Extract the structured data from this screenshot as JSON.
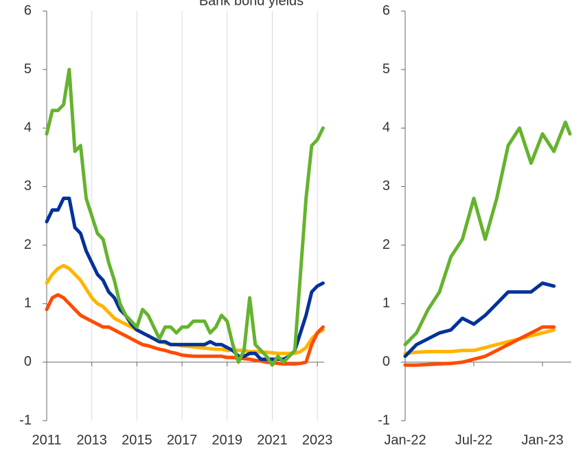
{
  "chart_data": [
    {
      "type": "line",
      "title": "Bank bond yields",
      "x": [
        2011,
        2011.25,
        2011.5,
        2011.75,
        2012,
        2012.25,
        2012.5,
        2012.75,
        2013,
        2013.25,
        2013.5,
        2013.75,
        2014,
        2014.25,
        2014.5,
        2014.75,
        2015,
        2015.25,
        2015.5,
        2015.75,
        2016,
        2016.25,
        2016.5,
        2016.75,
        2017,
        2017.25,
        2017.5,
        2017.75,
        2018,
        2018.25,
        2018.5,
        2018.75,
        2019,
        2019.25,
        2019.5,
        2019.75,
        2020,
        2020.25,
        2020.5,
        2020.75,
        2021,
        2021.25,
        2021.5,
        2021.75,
        2022,
        2022.25,
        2022.5,
        2022.75,
        2023,
        2023.25
      ],
      "series": [
        {
          "color": "#ffb400",
          "values": [
            1.35,
            1.5,
            1.6,
            1.65,
            1.6,
            1.5,
            1.4,
            1.25,
            1.1,
            1.0,
            0.95,
            0.85,
            0.75,
            0.7,
            0.65,
            0.6,
            0.55,
            0.5,
            0.45,
            0.4,
            0.35,
            0.33,
            0.3,
            0.3,
            0.28,
            0.27,
            0.26,
            0.25,
            0.24,
            0.23,
            0.22,
            0.22,
            0.2,
            0.2,
            0.2,
            0.2,
            0.18,
            0.18,
            0.17,
            0.17,
            0.16,
            0.15,
            0.15,
            0.15,
            0.15,
            0.18,
            0.25,
            0.4,
            0.5,
            0.55
          ]
        },
        {
          "color": "#ff4b00",
          "values": [
            0.9,
            1.1,
            1.15,
            1.1,
            1.0,
            0.9,
            0.8,
            0.75,
            0.7,
            0.65,
            0.6,
            0.6,
            0.55,
            0.5,
            0.45,
            0.4,
            0.35,
            0.3,
            0.28,
            0.25,
            0.22,
            0.2,
            0.17,
            0.15,
            0.12,
            0.11,
            0.1,
            0.1,
            0.1,
            0.1,
            0.1,
            0.1,
            0.08,
            0.08,
            0.07,
            0.06,
            0.05,
            0.03,
            0.02,
            0.0,
            -0.01,
            -0.02,
            -0.03,
            -0.03,
            -0.03,
            -0.02,
            0.0,
            0.3,
            0.5,
            0.6
          ]
        },
        {
          "color": "#003299",
          "values": [
            2.4,
            2.6,
            2.6,
            2.8,
            2.8,
            2.3,
            2.2,
            1.9,
            1.7,
            1.5,
            1.4,
            1.2,
            1.1,
            0.9,
            0.8,
            0.65,
            0.55,
            0.5,
            0.45,
            0.4,
            0.35,
            0.35,
            0.3,
            0.3,
            0.3,
            0.3,
            0.3,
            0.3,
            0.3,
            0.35,
            0.3,
            0.3,
            0.25,
            0.2,
            0.1,
            0.1,
            0.15,
            0.15,
            0.05,
            0.05,
            0.05,
            0.05,
            0.05,
            0.1,
            0.2,
            0.5,
            0.8,
            1.2,
            1.3,
            1.35
          ]
        },
        {
          "color": "#65b32e",
          "values": [
            3.9,
            4.3,
            4.3,
            4.4,
            5.0,
            3.6,
            3.7,
            2.8,
            2.5,
            2.2,
            2.1,
            1.7,
            1.4,
            1.0,
            0.8,
            0.7,
            0.6,
            0.9,
            0.8,
            0.6,
            0.4,
            0.6,
            0.6,
            0.5,
            0.6,
            0.6,
            0.7,
            0.7,
            0.7,
            0.5,
            0.6,
            0.8,
            0.7,
            0.3,
            0.0,
            0.2,
            1.1,
            0.3,
            0.2,
            0.1,
            -0.05,
            0.1,
            0.0,
            0.1,
            0.2,
            1.5,
            2.8,
            3.7,
            3.8,
            4.0
          ]
        }
      ],
      "xlim": [
        2011,
        2023.3
      ],
      "xticks": [
        2011,
        2013,
        2015,
        2017,
        2019,
        2021,
        2023
      ],
      "ylim": [
        -1,
        6
      ],
      "yticks": [
        -1,
        0,
        1,
        2,
        3,
        4,
        5,
        6
      ],
      "grid": true
    },
    {
      "type": "line",
      "x": [
        2022,
        2022.083,
        2022.167,
        2022.25,
        2022.333,
        2022.417,
        2022.5,
        2022.583,
        2022.667,
        2022.75,
        2022.833,
        2022.917,
        2023,
        2023.083,
        2023.167,
        2023.2
      ],
      "series": [
        {
          "color": "#ffb400",
          "values": [
            0.15,
            0.17,
            0.18,
            0.18,
            0.18,
            0.2,
            0.2,
            0.25,
            0.3,
            0.35,
            0.4,
            0.45,
            0.5,
            0.55,
            null,
            null
          ]
        },
        {
          "color": "#ff4b00",
          "values": [
            -0.05,
            -0.05,
            -0.04,
            -0.03,
            -0.02,
            0.0,
            0.05,
            0.1,
            0.2,
            0.3,
            0.4,
            0.5,
            0.6,
            0.6,
            null,
            null
          ]
        },
        {
          "color": "#003299",
          "values": [
            0.1,
            0.3,
            0.4,
            0.5,
            0.55,
            0.75,
            0.65,
            0.8,
            1.0,
            1.2,
            1.2,
            1.2,
            1.35,
            1.3,
            null,
            null
          ]
        },
        {
          "color": "#65b32e",
          "values": [
            0.3,
            0.5,
            0.9,
            1.2,
            1.8,
            2.1,
            2.8,
            2.1,
            2.8,
            3.7,
            4.0,
            3.4,
            3.9,
            3.6,
            4.1,
            3.9
          ]
        }
      ],
      "xlim": [
        2022,
        2023.21
      ],
      "xticks": [
        {
          "value": 2022,
          "label": "Jan-22"
        },
        {
          "value": 2022.5,
          "label": "Jul-22"
        },
        {
          "value": 2023,
          "label": "Jan-23"
        }
      ],
      "ylim": [
        -1,
        6
      ],
      "yticks": [
        -1,
        0,
        1,
        2,
        3,
        4,
        5,
        6
      ],
      "grid": false
    }
  ]
}
